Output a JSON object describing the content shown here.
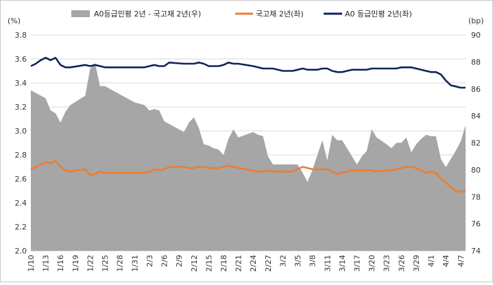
{
  "chart_data": {
    "type": "area+line",
    "left_unit": "(%)",
    "right_unit": "(bp)",
    "left_axis": {
      "min": 2.0,
      "max": 3.8,
      "ticks": [
        "2.0",
        "2.2",
        "2.4",
        "2.6",
        "2.8",
        "3.0",
        "3.2",
        "3.4",
        "3.6",
        "3.8"
      ]
    },
    "right_axis": {
      "min": 74,
      "max": 90,
      "ticks": [
        "74",
        "76",
        "78",
        "80",
        "82",
        "84",
        "86",
        "88",
        "90"
      ]
    },
    "x_tick_labels": [
      "1/10",
      "1/13",
      "1/16",
      "1/19",
      "1/22",
      "1/25",
      "1/28",
      "1/31",
      "2/3",
      "2/6",
      "2/9",
      "2/12",
      "2/15",
      "2/18",
      "2/21",
      "2/24",
      "2/27",
      "3/2",
      "3/5",
      "3/8",
      "3/11",
      "3/14",
      "3/17",
      "3/20",
      "3/23",
      "3/26",
      "3/29",
      "4/1",
      "4/4",
      "4/7"
    ],
    "x_tick_days": [
      0,
      3,
      6,
      9,
      12,
      15,
      18,
      21,
      24,
      27,
      30,
      33,
      36,
      39,
      42,
      45,
      48,
      51,
      54,
      57,
      60,
      63,
      66,
      69,
      72,
      75,
      78,
      81,
      84,
      87
    ],
    "grid": "horizontal",
    "legend_position": "top",
    "colors": {
      "spread": "#a6a6a6",
      "treasury": "#ed7d31",
      "a0": "#0d2359"
    },
    "series": [
      {
        "name": "A0등급민평 2년 - 국고채 2년(우)",
        "axis": "right",
        "style": "area",
        "x": [
          0,
          3,
          4,
          5,
          6,
          7,
          8,
          11,
          12,
          13,
          14,
          15,
          16,
          17,
          18,
          21,
          23,
          24,
          25,
          26,
          27,
          28,
          31,
          32,
          33,
          34,
          35,
          36,
          37,
          38,
          39,
          40,
          41,
          42,
          45,
          46,
          47,
          48,
          49,
          50,
          51,
          52,
          53,
          54,
          55,
          56,
          57,
          58,
          59,
          60,
          61,
          62,
          63,
          64,
          65,
          66,
          67,
          68,
          69,
          70,
          72,
          73,
          74,
          75,
          76,
          77,
          78,
          79,
          80,
          81,
          82,
          83,
          84,
          85,
          86,
          87,
          88
        ],
        "values": [
          85.9,
          85.3,
          84.4,
          84.2,
          83.5,
          84.3,
          84.8,
          85.5,
          87.5,
          87.9,
          86.2,
          86.2,
          86.0,
          85.8,
          85.6,
          85.0,
          84.8,
          84.4,
          84.5,
          84.4,
          83.6,
          83.4,
          82.8,
          83.5,
          83.9,
          83.1,
          81.9,
          81.8,
          81.6,
          81.5,
          81.1,
          82.3,
          83.0,
          82.4,
          82.8,
          82.6,
          82.5,
          81.0,
          80.4,
          80.4,
          80.4,
          80.4,
          80.4,
          80.4,
          79.8,
          79.1,
          80.0,
          81.1,
          82.2,
          80.7,
          82.6,
          82.2,
          82.2,
          81.6,
          81.0,
          80.4,
          81.0,
          81.4,
          83.0,
          82.4,
          81.9,
          81.6,
          82.0,
          82.0,
          82.4,
          81.3,
          81.9,
          82.3,
          82.6,
          82.5,
          82.5,
          80.8,
          80.2,
          80.8,
          81.4,
          82.1,
          83.3
        ]
      },
      {
        "name": "국고채 2년(좌)",
        "axis": "left",
        "style": "line",
        "x": [
          0,
          1,
          2,
          3,
          4,
          5,
          6,
          7,
          8,
          11,
          12,
          13,
          14,
          15,
          16,
          17,
          18,
          21,
          23,
          24,
          25,
          26,
          27,
          28,
          31,
          32,
          33,
          34,
          35,
          36,
          37,
          38,
          39,
          40,
          41,
          42,
          45,
          46,
          47,
          48,
          49,
          50,
          51,
          52,
          53,
          54,
          55,
          56,
          57,
          58,
          59,
          60,
          61,
          62,
          63,
          64,
          65,
          66,
          67,
          68,
          69,
          70,
          72,
          73,
          74,
          75,
          76,
          77,
          78,
          79,
          80,
          81,
          82,
          83,
          84,
          85,
          86,
          87,
          88
        ],
        "values": [
          2.68,
          2.7,
          2.72,
          2.74,
          2.73,
          2.75,
          2.7,
          2.67,
          2.66,
          2.68,
          2.63,
          2.64,
          2.66,
          2.65,
          2.65,
          2.65,
          2.65,
          2.65,
          2.65,
          2.66,
          2.68,
          2.67,
          2.68,
          2.7,
          2.7,
          2.69,
          2.69,
          2.7,
          2.7,
          2.69,
          2.69,
          2.69,
          2.7,
          2.71,
          2.7,
          2.69,
          2.67,
          2.66,
          2.66,
          2.67,
          2.66,
          2.66,
          2.66,
          2.66,
          2.66,
          2.68,
          2.7,
          2.69,
          2.68,
          2.68,
          2.68,
          2.68,
          2.66,
          2.64,
          2.65,
          2.66,
          2.67,
          2.67,
          2.67,
          2.67,
          2.67,
          2.66,
          2.67,
          2.67,
          2.68,
          2.69,
          2.7,
          2.7,
          2.69,
          2.67,
          2.65,
          2.66,
          2.65,
          2.6,
          2.57,
          2.53,
          2.5,
          2.49,
          2.5
        ]
      },
      {
        "name": "A0 등급민평 2년(좌)",
        "axis": "left",
        "style": "line",
        "x": [
          0,
          1,
          2,
          3,
          4,
          5,
          6,
          7,
          8,
          11,
          12,
          13,
          14,
          15,
          16,
          17,
          18,
          21,
          23,
          24,
          25,
          26,
          27,
          28,
          31,
          32,
          33,
          34,
          35,
          36,
          37,
          38,
          39,
          40,
          41,
          42,
          45,
          46,
          47,
          48,
          49,
          50,
          51,
          52,
          53,
          54,
          55,
          56,
          57,
          58,
          59,
          60,
          61,
          62,
          63,
          64,
          65,
          66,
          67,
          68,
          69,
          70,
          72,
          73,
          74,
          75,
          76,
          77,
          78,
          79,
          80,
          81,
          82,
          83,
          84,
          85,
          86,
          87,
          88
        ],
        "values": [
          3.54,
          3.56,
          3.59,
          3.61,
          3.59,
          3.61,
          3.55,
          3.53,
          3.53,
          3.55,
          3.54,
          3.55,
          3.54,
          3.53,
          3.53,
          3.53,
          3.53,
          3.53,
          3.53,
          3.54,
          3.55,
          3.54,
          3.54,
          3.57,
          3.56,
          3.56,
          3.56,
          3.57,
          3.56,
          3.54,
          3.54,
          3.54,
          3.55,
          3.57,
          3.56,
          3.56,
          3.54,
          3.53,
          3.52,
          3.52,
          3.52,
          3.51,
          3.5,
          3.5,
          3.5,
          3.51,
          3.52,
          3.51,
          3.51,
          3.51,
          3.52,
          3.52,
          3.5,
          3.49,
          3.49,
          3.5,
          3.51,
          3.51,
          3.51,
          3.51,
          3.52,
          3.52,
          3.52,
          3.52,
          3.52,
          3.53,
          3.53,
          3.53,
          3.52,
          3.51,
          3.5,
          3.49,
          3.49,
          3.47,
          3.42,
          3.38,
          3.37,
          3.36,
          3.36
        ]
      }
    ]
  }
}
